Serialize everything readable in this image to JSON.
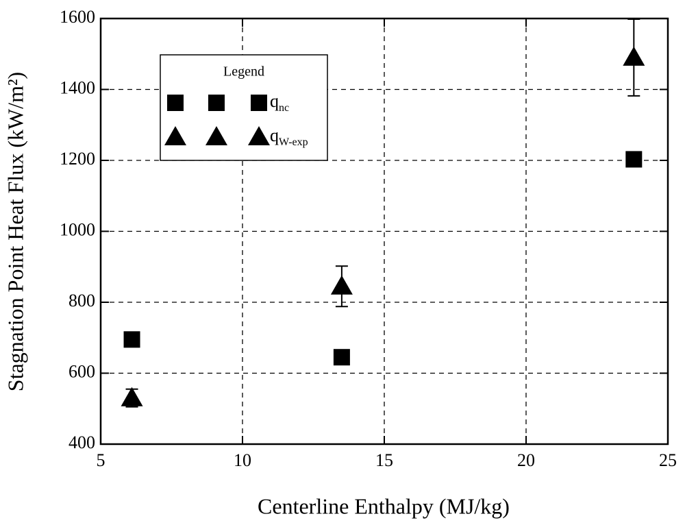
{
  "chart_data": {
    "type": "scatter",
    "xlabel": "Centerline Enthalpy (MJ/kg)",
    "ylabel": "Stagnation Point Heat Flux (kW/m²)",
    "legend_title": "Legend",
    "legend": "upper left",
    "grid": true,
    "xlim": [
      5,
      25
    ],
    "xticks": [
      5,
      10,
      15,
      20,
      25
    ],
    "ylim": [
      400,
      1600
    ],
    "yticks": [
      400,
      600,
      800,
      1000,
      1200,
      1400,
      1600
    ],
    "series": [
      {
        "name": "qnc",
        "color": "#000000",
        "marker": "square",
        "x": [
          6.1,
          13.5,
          23.8
        ],
        "values": [
          695,
          645,
          1203
        ]
      },
      {
        "name": "qW-exp",
        "color": "#000000",
        "marker": "triangle",
        "x": [
          6.1,
          13.5,
          23.8
        ],
        "values": [
          530,
          845,
          1490
        ],
        "errors": [
          25,
          57,
          108
        ]
      }
    ]
  }
}
